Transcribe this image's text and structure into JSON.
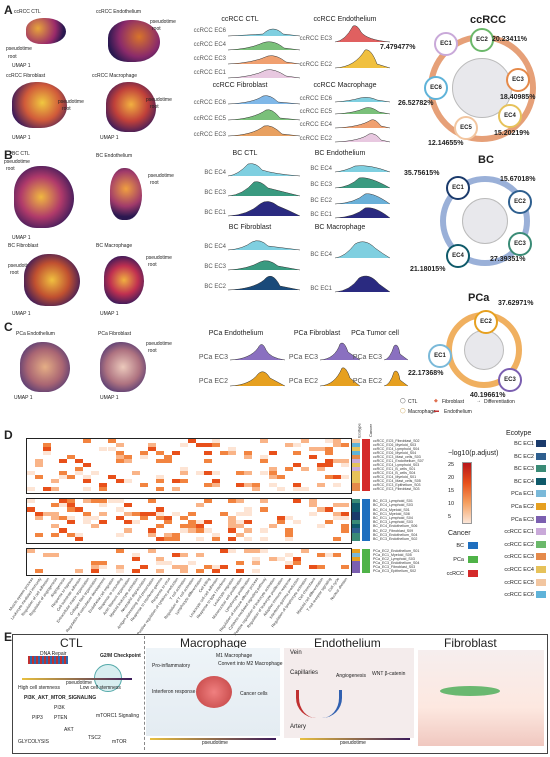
{
  "panels": {
    "A": "A",
    "B": "B",
    "C": "C",
    "D": "D",
    "E": "E"
  },
  "umap": {
    "axis_x": "UMAP 1",
    "axis_y": "UMAP 2",
    "pseudotime": "pseudotime",
    "root": "root",
    "A": [
      "ccRCC CTL",
      "ccRCC Endothelium",
      "ccRCC Fibroblast",
      "ccRCC Macrophage"
    ],
    "B": [
      "BC CTL",
      "BC Endothelium",
      "BC Fibroblast",
      "BC Macrophage"
    ],
    "C": [
      "PCa Endothelium",
      "PCa Fibroblast"
    ]
  },
  "ridges": {
    "A_ctl": {
      "title": "ccRCC CTL",
      "rows": [
        "ccRCC EC6",
        "ccRCC EC4",
        "ccRCC EC3",
        "ccRCC EC1"
      ]
    },
    "A_endo": {
      "title": "ccRCC Endothelium",
      "rows": [
        "ccRCC EC3",
        "ccRCC EC2"
      ]
    },
    "A_fib": {
      "title": "ccRCC Fibroblast",
      "rows": [
        "ccRCC EC6",
        "ccRCC EC5",
        "ccRCC EC3"
      ]
    },
    "A_mac": {
      "title": "ccRCC Macrophage",
      "rows": [
        "ccRCC EC6",
        "ccRCC EC5",
        "ccRCC EC4",
        "ccRCC EC2"
      ]
    },
    "B_ctl": {
      "title": "BC CTL",
      "rows": [
        "BC EC4",
        "BC EC3",
        "BC EC1"
      ]
    },
    "B_endo": {
      "title": "BC Endothelium",
      "rows": [
        "BC EC4",
        "BC EC3",
        "BC EC2",
        "BC EC1"
      ]
    },
    "B_fib": {
      "title": "BC Fibroblast",
      "rows": [
        "BC EC4",
        "BC EC3",
        "BC EC2"
      ]
    },
    "B_mac": {
      "title": "BC Macrophage",
      "rows": [
        "BC EC4",
        "BC EC1"
      ]
    },
    "C_endo": {
      "title": "PCa Endothelium",
      "rows": [
        "PCa EC3",
        "PCa EC2"
      ]
    },
    "C_fib": {
      "title": "PCa Fibroblast",
      "rows": [
        "PCa EC3",
        "PCa EC2"
      ]
    },
    "C_tum": {
      "title": "PCa Tumor cell",
      "rows": [
        "PCa EC3",
        "PCa EC2"
      ]
    }
  },
  "circles": {
    "ccRCC": {
      "title": "ccRCC",
      "nodes": [
        "EC1",
        "EC2",
        "EC3",
        "EC4",
        "EC5",
        "EC6"
      ],
      "pcts": [
        "7.479477%",
        "20.23411%",
        "18.40985%",
        "15.20219%",
        "12.14655%",
        "26.52782%"
      ]
    },
    "BC": {
      "title": "BC",
      "nodes": [
        "EC1",
        "EC2",
        "EC3",
        "EC4"
      ],
      "pcts": [
        "35.75615%",
        "15.67018%",
        "27.39351%",
        "21.18015%"
      ]
    },
    "PCa": {
      "title": "PCa",
      "nodes": [
        "EC1",
        "EC2",
        "EC3"
      ],
      "pcts": [
        "22.17368%",
        "37.62971%",
        "40.19661%"
      ]
    }
  },
  "cell_legend": {
    "ctl": "CTL",
    "fib": "Fibroblast",
    "mac": "Macrophage",
    "endo": "Endothelium",
    "diff": "Differentiation"
  },
  "heatmap": {
    "col_header": [
      "Ecotype",
      "Cancer"
    ],
    "block1": [
      "ccRCC_EC5_Fibroblast_S02",
      "ccRCC_EC6_Myeloid_S03",
      "ccRCC_EC4_Lymphoid_S04",
      "ccRCC_EC6_Myeloid_S04",
      "ccRCC_EC3_Mast_cells_S03",
      "ccRCC_EC1_Endothelium_S07",
      "ccRCC_EC4_Lymphoid_S03",
      "ccRCC_EC1_B_cells_S01",
      "ccRCC_EC4_B_cells_S04",
      "ccRCC_EC4_Myeloid_S01",
      "ccRCC_EC4_Mast_cells_S05",
      "ccRCC_EC3_Epithelium_S03",
      "ccRCC_EC3_Fibroblast_S03"
    ],
    "block2": [
      "BC_EC3_Lymphoid_S01",
      "BC_EC4_Lymphoid_S03",
      "BC_EC4_Myeloid_S01",
      "BC_EC1_Myeloid_S08",
      "BC_EC1_Lymphoid_S04",
      "BC_EC3_Lymphoid_S03",
      "BC_EC4_Endothelium_S06",
      "BC_EC2_Fibroblast_S09",
      "BC_EC3_Endothelium_S04",
      "BC_EC3_Endothelium_S02"
    ],
    "block3": [
      "PCa_EC2_Endothelium_S01",
      "PCa_EC1_Myeloid_S05",
      "PCa_EC2_Lymphoid_S03",
      "PCa_EC3_Endothelium_S04",
      "PCa_EC3_Fibroblast_S03",
      "PCa_EC3_Epithelium_S02"
    ],
    "columns": [
      "Muscle system process",
      "Leukocyte mediated immunity",
      "Regulation of cell adhesion",
      "Regulation of angiogenesis",
      "Angiogenesis",
      "Response to hypoxia",
      "Cell-substrate adhesion",
      "Extracellular matrix organization",
      "Collagen fibril organization",
      "Regulation of vasculature development",
      "Endothelial cell migration",
      "Response to wounding",
      "Actin filament organization",
      "Myeloid leukocyte activation",
      "Neutrophil degranulation",
      "Antigen processing and presentation",
      "Response to interferon-gamma",
      "Response to virus",
      "Positive regulation of cytokine production",
      "T cell activation",
      "Regulation of T cell activation",
      "Lymphocyte differentiation",
      "Cell killing",
      "Leukocyte cell-cell adhesion",
      "Response to type I interferon",
      "Leukocyte migration",
      "Mononuclear cell proliferation",
      "Lymphocyte proliferation",
      "Regulation of immune effector process",
      "Cytokine-mediated signaling pathway",
      "Positive regulation of leukocyte activation",
      "Regulation of leukocyte proliferation",
      "Adaptive immune response",
      "Interferon-gamma production",
      "Regulation of lymphocyte activation",
      "Cell chemotaxis",
      "Myeloid cell differentiation",
      "T cell receptor signaling",
      "Cell cycle",
      "Nuclear division"
    ],
    "scale_title": "−log10(p.adjust)",
    "scale_ticks": [
      "25",
      "20",
      "15",
      "10",
      "5"
    ],
    "ecotype_title": "Ecotype",
    "ecotypes": [
      "BC EC1",
      "BC EC2",
      "BC EC3",
      "BC EC4",
      "PCa EC1",
      "PCa EC2",
      "PCa EC3",
      "ccRCC EC1",
      "ccRCC EC2",
      "ccRCC EC3",
      "ccRCC EC4",
      "ccRCC EC5",
      "ccRCC EC6"
    ],
    "ecotype_colors": [
      "#1a3a6b",
      "#2e5f8f",
      "#3a8b76",
      "#0f5a6a",
      "#7ab9d9",
      "#e6a020",
      "#7b5fb0",
      "#c9a9d9",
      "#6bb86a",
      "#e58a4a",
      "#e6c25a",
      "#f2c6a0",
      "#5fb3d9"
    ],
    "cancer_title": "Cancer",
    "cancers": [
      "BC",
      "PCa",
      "ccRCC"
    ],
    "cancer_colors": [
      "#1f6fbf",
      "#4fb348",
      "#d42a2a"
    ]
  },
  "E": {
    "ctl": {
      "title": "CTL",
      "dna": "DNA Repair",
      "g2m": "G2/M Checkpoint",
      "hi": "High cell stemness",
      "lo": "Low cell stemness",
      "pi3k": "PI3K_AKT_MTOR_SIGNALING",
      "mtorc": "mTORC1 Signaling",
      "glyc": "GLYCOLYSIS",
      "pt": "pseudotime",
      "pten": "PTEN",
      "pip": "PIP3",
      "akt": "AKT",
      "tsc": "TSC2",
      "mtor": "mTOR",
      "pi3": "PI3K"
    },
    "mac": {
      "title": "Macrophage",
      "m1": "M1 Macrophage",
      "pro": "Pro-inflammatory",
      "ifn": "Interferon response",
      "conv": "Convert into M2 Macrophage",
      "cancer": "Cancer cells",
      "pt": "pseudotime"
    },
    "endo": {
      "title": "Endothelium",
      "vein": "Vein",
      "cap": "Capillaries",
      "ang": "Angiogenesis",
      "wnt": "WNT β-catenin",
      "artery": "Artery",
      "pt": "pseudotime"
    },
    "fib": {
      "title": "Fibroblast"
    }
  }
}
